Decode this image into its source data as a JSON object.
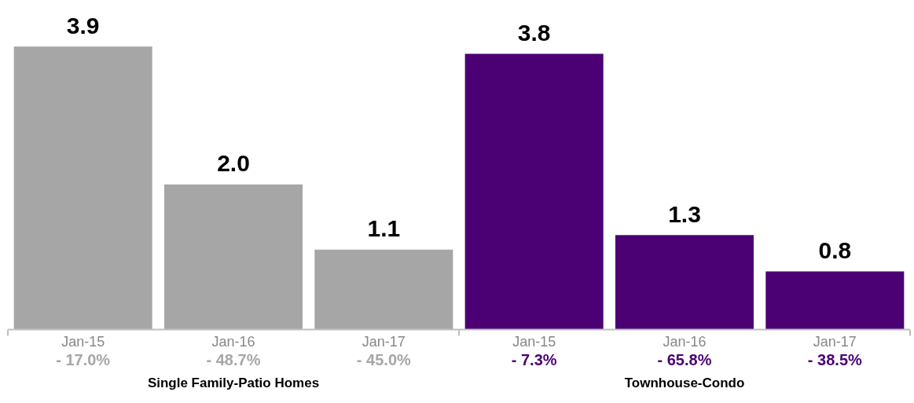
{
  "chart_data": {
    "type": "bar",
    "categories": [
      "Jan-15",
      "Jan-16",
      "Jan-17",
      "Jan-15",
      "Jan-16",
      "Jan-17"
    ],
    "series": [
      {
        "color": "#a6a6a6",
        "values": [
          3.9,
          2.0,
          1.1,
          null,
          null,
          null
        ],
        "value_labels": [
          "3.9",
          "2.0",
          "1.1",
          null,
          null,
          null
        ]
      },
      {
        "color": "#4b0073",
        "values": [
          null,
          null,
          null,
          3.8,
          1.3,
          0.8
        ],
        "value_labels": [
          null,
          null,
          null,
          "3.8",
          "1.3",
          "0.8"
        ]
      }
    ],
    "annotations": [
      "- 17.0%",
      "- 48.7%",
      "- 45.0%",
      "- 7.3%",
      "- 65.8%",
      "- 38.5%",
      "Single Family-Patio Homes",
      "Townhouse-Condo"
    ],
    "legend": false,
    "grid": false
  }
}
